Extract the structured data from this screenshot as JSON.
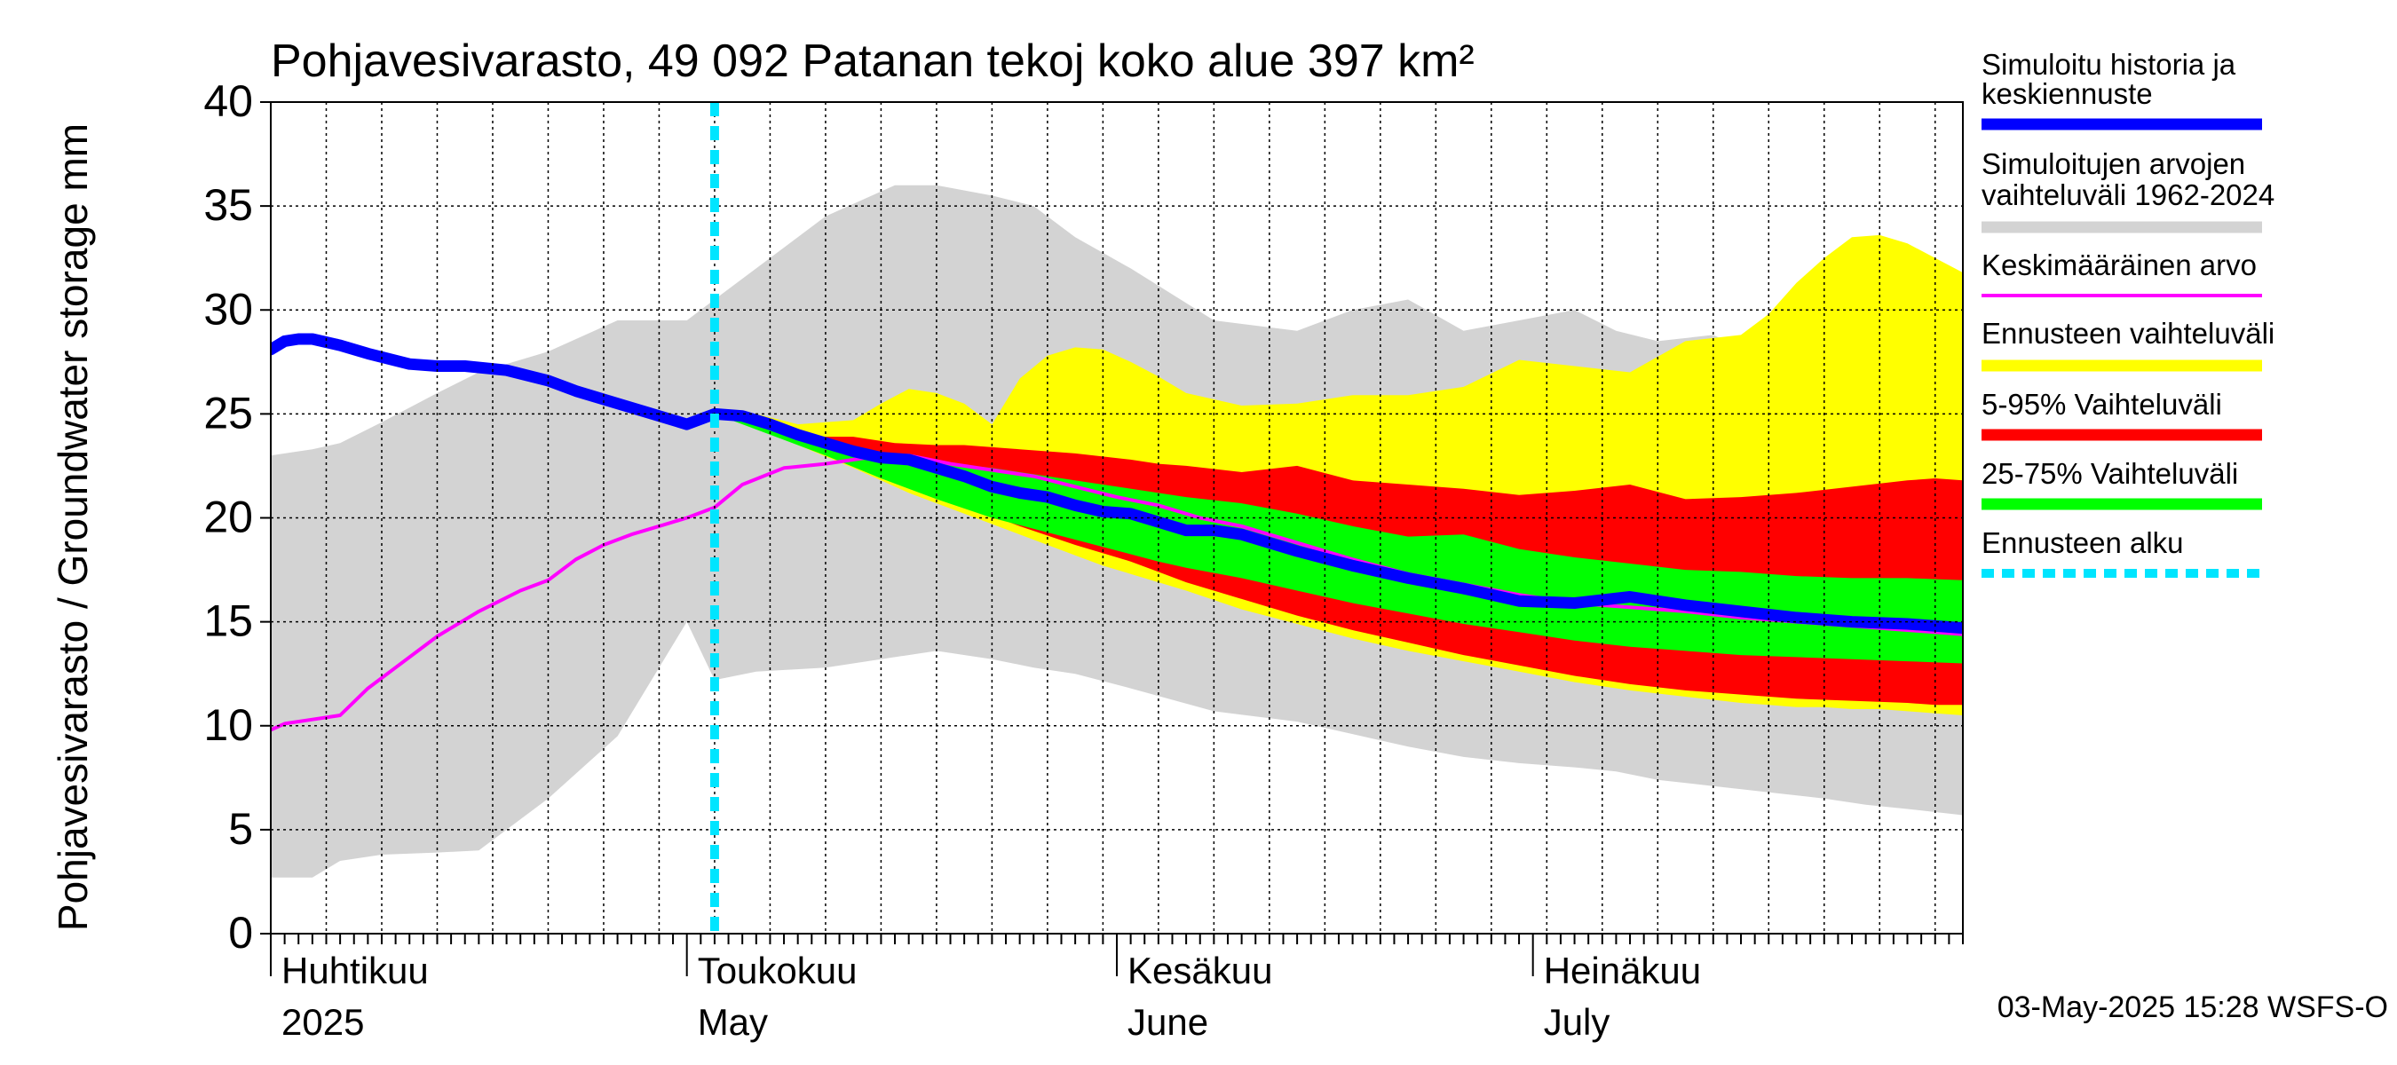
{
  "chart_data": {
    "type": "area",
    "title": "Pohjavesivarasto, 49 092 Patanan tekoj koko alue 397 km²",
    "ylabel": "Pohjavesivarasto / Groundwater storage   mm",
    "ylim": [
      0,
      40
    ],
    "yticks": [
      0,
      5,
      10,
      15,
      20,
      25,
      30,
      35,
      40
    ],
    "xlim": [
      0,
      122
    ],
    "forecast_start_day": 32,
    "x_month_labels": [
      {
        "day": 0,
        "fi": "Huhtikuu",
        "en": "2025"
      },
      {
        "day": 30,
        "fi": "Toukokuu",
        "en": "May"
      },
      {
        "day": 61,
        "fi": "Kesäkuu",
        "en": "June"
      },
      {
        "day": 91,
        "fi": "Heinäkuu",
        "en": "July"
      }
    ],
    "legend": {
      "history": "Simuloitu historia ja keskiennuste",
      "range_sim_line1": "Simuloitujen arvojen",
      "range_sim_line2": "vaihteluväli 1962-2024",
      "mean": "Keskimääräinen arvo",
      "forecast_range": "Ennusteen vaihteluväli",
      "p5_95": "5-95% Vaihteluväli",
      "p25_75": "25-75% Vaihteluväli",
      "forecast_start": "Ennusteen alku"
    },
    "colors": {
      "sim_range": "#d3d3d3",
      "forecast_range": "#ffff00",
      "p5_95": "#ff0000",
      "p25_75": "#00ff00",
      "history": "#0000ff",
      "mean": "#ff00ff",
      "forecast_start": "#00e5ff",
      "grid": "#000000"
    },
    "series": {
      "sim_range": {
        "x": [
          0,
          3,
          5,
          8,
          12,
          15,
          20,
          25,
          30,
          32,
          35,
          40,
          45,
          48,
          52,
          55,
          58,
          62,
          68,
          74,
          78,
          82,
          86,
          90,
          94,
          97,
          100,
          104,
          108,
          112,
          115,
          118,
          122
        ],
        "low": [
          2.7,
          2.7,
          3.5,
          3.8,
          3.9,
          4.0,
          6.5,
          9.5,
          15.0,
          12.2,
          12.6,
          12.8,
          13.3,
          13.6,
          13.2,
          12.8,
          12.5,
          11.8,
          10.7,
          10.2,
          9.6,
          9.0,
          8.5,
          8.2,
          8.0,
          7.8,
          7.4,
          7.1,
          6.8,
          6.5,
          6.2,
          6.0,
          5.7
        ],
        "high": [
          23.0,
          23.3,
          23.6,
          24.6,
          26.0,
          27.0,
          28.0,
          29.5,
          29.5,
          30.5,
          32.0,
          34.5,
          36.0,
          36.0,
          35.5,
          35.0,
          33.5,
          32.0,
          29.5,
          29.0,
          30.0,
          30.5,
          29.0,
          29.5,
          30.0,
          29.0,
          28.5,
          28.8,
          27.5,
          29.5,
          29.7,
          29.8,
          30.0
        ]
      },
      "forecast_range": {
        "x": [
          32,
          35,
          38,
          42,
          44,
          46,
          48,
          50,
          52,
          54,
          56,
          58,
          60,
          62,
          64,
          66,
          70,
          74,
          78,
          82,
          86,
          90,
          94,
          98,
          102,
          106,
          108,
          110,
          112,
          114,
          116,
          118,
          120,
          122
        ],
        "low": [
          25.0,
          24.4,
          23.5,
          22.4,
          21.8,
          21.2,
          20.7,
          20.2,
          19.7,
          19.2,
          18.7,
          18.2,
          17.7,
          17.3,
          16.9,
          16.5,
          15.6,
          14.9,
          14.2,
          13.6,
          13.1,
          12.6,
          12.1,
          11.7,
          11.4,
          11.1,
          11.0,
          10.9,
          10.9,
          10.8,
          10.8,
          10.7,
          10.6,
          10.5
        ],
        "high": [
          25.0,
          25.0,
          24.5,
          24.7,
          25.5,
          26.2,
          26.0,
          25.5,
          24.5,
          26.7,
          27.8,
          28.2,
          28.1,
          27.5,
          26.8,
          26.0,
          25.4,
          25.5,
          25.9,
          25.9,
          26.3,
          27.6,
          27.3,
          27.0,
          28.5,
          28.8,
          29.8,
          31.3,
          32.5,
          33.5,
          33.6,
          33.2,
          32.5,
          31.8
        ]
      },
      "p5_95": {
        "x": [
          32,
          35,
          38,
          40,
          42,
          45,
          48,
          50,
          54,
          58,
          62,
          64,
          66,
          70,
          74,
          78,
          82,
          86,
          90,
          94,
          98,
          102,
          106,
          110,
          114,
          118,
          120,
          122
        ],
        "low": [
          25.0,
          24.4,
          23.7,
          23.2,
          22.7,
          21.9,
          21.1,
          20.6,
          19.6,
          18.7,
          17.9,
          17.4,
          16.9,
          16.1,
          15.3,
          14.6,
          14.0,
          13.4,
          12.9,
          12.4,
          12.0,
          11.7,
          11.5,
          11.3,
          11.2,
          11.1,
          11.0,
          11.0
        ],
        "high": [
          25.0,
          24.5,
          24.0,
          23.9,
          23.9,
          23.6,
          23.5,
          23.5,
          23.3,
          23.1,
          22.8,
          22.6,
          22.5,
          22.2,
          22.5,
          21.8,
          21.6,
          21.4,
          21.1,
          21.3,
          21.6,
          20.9,
          21.0,
          21.2,
          21.5,
          21.8,
          21.9,
          21.8
        ]
      },
      "p25_75": {
        "x": [
          32,
          36,
          40,
          44,
          48,
          52,
          56,
          60,
          64,
          66,
          70,
          74,
          78,
          82,
          86,
          90,
          94,
          98,
          102,
          106,
          110,
          114,
          118,
          122
        ],
        "low": [
          25.0,
          24.0,
          23.0,
          21.9,
          20.9,
          20.0,
          19.3,
          18.6,
          17.9,
          17.6,
          17.1,
          16.5,
          15.9,
          15.4,
          14.9,
          14.5,
          14.1,
          13.8,
          13.6,
          13.4,
          13.3,
          13.2,
          13.1,
          13.0
        ],
        "high": [
          25.0,
          24.3,
          23.6,
          23.1,
          22.7,
          22.4,
          22.0,
          21.6,
          21.2,
          21.0,
          20.7,
          20.2,
          19.6,
          19.1,
          19.2,
          18.5,
          18.1,
          17.8,
          17.5,
          17.4,
          17.2,
          17.1,
          17.1,
          17.0
        ]
      },
      "history": {
        "x": [
          0,
          1,
          2,
          3,
          5,
          7,
          10,
          12,
          14,
          17,
          20,
          22,
          25,
          28,
          30,
          32,
          34,
          36,
          38,
          40,
          42,
          44,
          46,
          48,
          50,
          52,
          54,
          56,
          58,
          60,
          62,
          64,
          66,
          68,
          70,
          74,
          78,
          82,
          86,
          90,
          94,
          98,
          102,
          106,
          110,
          114,
          118,
          122
        ],
        "y": [
          28.1,
          28.5,
          28.6,
          28.6,
          28.3,
          27.9,
          27.4,
          27.3,
          27.3,
          27.1,
          26.6,
          26.1,
          25.5,
          24.9,
          24.5,
          25.0,
          24.9,
          24.5,
          24.0,
          23.6,
          23.2,
          22.9,
          22.8,
          22.4,
          22.0,
          21.5,
          21.2,
          21.0,
          20.6,
          20.3,
          20.2,
          19.8,
          19.4,
          19.4,
          19.2,
          18.4,
          17.7,
          17.1,
          16.6,
          16.0,
          15.9,
          16.2,
          15.8,
          15.5,
          15.2,
          15.0,
          14.9,
          14.7
        ]
      },
      "mean": {
        "x": [
          0,
          1,
          3,
          5,
          7,
          9,
          12,
          15,
          18,
          20,
          22,
          24,
          26,
          28,
          30,
          32,
          34,
          37,
          40,
          43,
          46,
          49,
          52,
          55,
          58,
          61,
          64,
          67,
          70,
          74,
          78,
          82,
          86,
          90,
          94,
          98,
          102,
          106,
          110,
          114,
          118,
          122
        ],
        "y": [
          9.8,
          10.1,
          10.3,
          10.5,
          11.8,
          12.8,
          14.3,
          15.5,
          16.5,
          17.0,
          18.0,
          18.7,
          19.2,
          19.6,
          20.0,
          20.5,
          21.6,
          22.4,
          22.6,
          22.9,
          23.0,
          22.6,
          22.3,
          22.0,
          21.5,
          21.0,
          20.6,
          20.0,
          19.6,
          18.8,
          18.0,
          17.3,
          16.8,
          16.3,
          15.9,
          15.7,
          15.5,
          15.2,
          15.0,
          14.8,
          14.6,
          14.4
        ]
      }
    }
  },
  "footer": {
    "timestamp": "03-May-2025 15:28 WSFS-O"
  }
}
